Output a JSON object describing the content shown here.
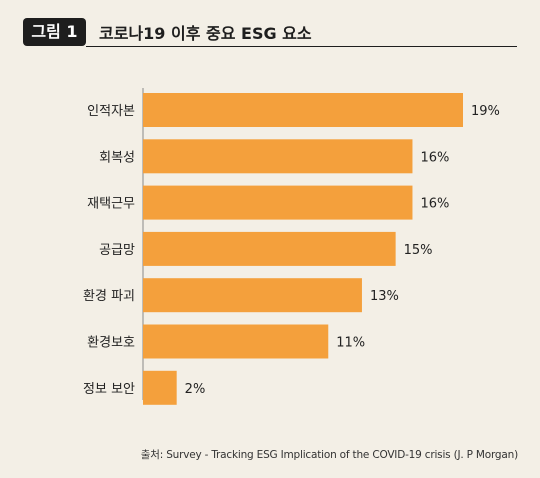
{
  "header": {
    "badge": "그림 1",
    "title": "코로나19 이후 중요 ESG 요소"
  },
  "chart_data": {
    "type": "bar",
    "orientation": "horizontal",
    "title": "코로나19 이후 중요 ESG 요소",
    "categories": [
      "인적자본",
      "회복성",
      "재택근무",
      "공급망",
      "환경 파괴",
      "환경보호",
      "정보 보안"
    ],
    "values": [
      19,
      16,
      16,
      15,
      13,
      11,
      2
    ],
    "value_labels": [
      "19%",
      "16%",
      "16%",
      "15%",
      "13%",
      "11%",
      "2%"
    ],
    "unit": "%",
    "xlim": [
      0,
      19
    ],
    "bar_color": "#f4a03c",
    "grid": false
  },
  "source": "출처: Survey - Tracking ESG Implication of the COVID-19 crisis (J. P Morgan)"
}
